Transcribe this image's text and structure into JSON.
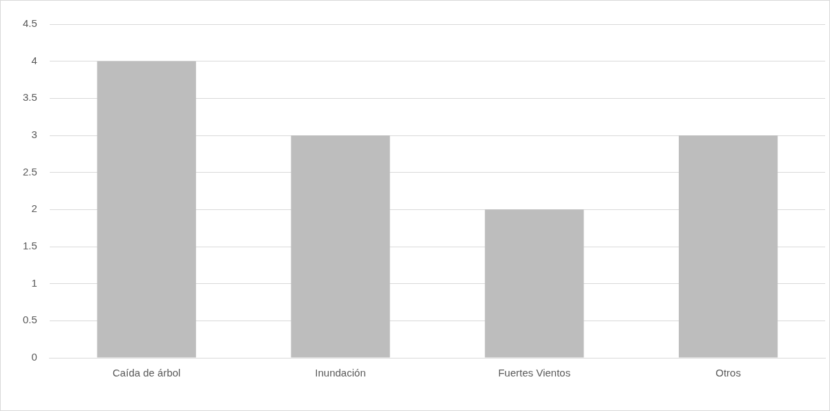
{
  "chart_data": {
    "type": "bar",
    "categories": [
      "Caída de árbol",
      "Inundación",
      "Fuertes Vientos",
      "Otros"
    ],
    "values": [
      4,
      3,
      2,
      3
    ],
    "color": "#bdbdbd",
    "ylim": [
      0,
      4.5
    ],
    "yticks": [
      0,
      0.5,
      1,
      1.5,
      2,
      2.5,
      3,
      3.5,
      4,
      4.5
    ],
    "grid": "y",
    "legend": false
  }
}
